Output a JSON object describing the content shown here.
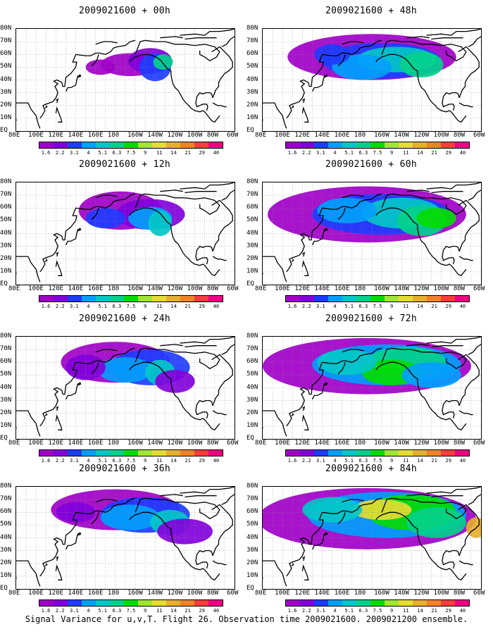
{
  "caption": "Signal Variance for u,v,T. Flight 26. Observation time 2009021600. 2009021200 ensemble.",
  "panels": [
    {
      "title": "2009021600 + 00h",
      "lead": 0
    },
    {
      "title": "2009021600 + 48h",
      "lead": 48
    },
    {
      "title": "2009021600 + 12h",
      "lead": 12
    },
    {
      "title": "2009021600 + 60h",
      "lead": 60
    },
    {
      "title": "2009021600 + 24h",
      "lead": 24
    },
    {
      "title": "2009021600 + 72h",
      "lead": 72
    },
    {
      "title": "2009021600 + 36h",
      "lead": 36
    },
    {
      "title": "2009021600 + 84h",
      "lead": 84
    }
  ],
  "lat_labels": [
    "80N",
    "70N",
    "60N",
    "50N",
    "40N",
    "30N",
    "20N",
    "10N",
    "EQ"
  ],
  "lon_labels": [
    "80E",
    "100E",
    "120E",
    "140E",
    "160E",
    "180",
    "160W",
    "140W",
    "120W",
    "100W",
    "80W",
    "60W"
  ],
  "colorbar": {
    "labels": [
      "1.6",
      "2.2",
      "3.1",
      "4",
      "5.1",
      "6.3",
      "7.5",
      "9",
      "11",
      "14",
      "21",
      "29",
      "40"
    ],
    "colors": [
      "#a000c8",
      "#8200dc",
      "#1e3cff",
      "#00a0ff",
      "#00c8c8",
      "#00d28c",
      "#00dc00",
      "#a0e632",
      "#e6dc32",
      "#e6af2d",
      "#f08228",
      "#fa3c3c",
      "#f00082"
    ]
  },
  "map": {
    "domain": {
      "lon_start_east": 80,
      "lon_end_east": 300,
      "lat_min": 0,
      "lat_max": 80
    },
    "graticule_step_deg": 10,
    "gridline_style": "dotted",
    "coastline_color": "#000000"
  }
}
